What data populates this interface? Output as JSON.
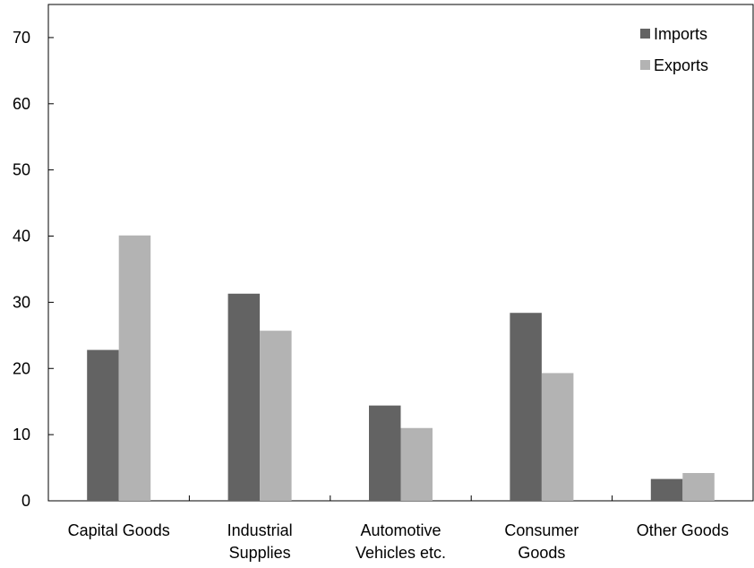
{
  "chart_data": {
    "type": "bar",
    "categories": [
      [
        "Capital Goods"
      ],
      [
        "Industrial",
        "Supplies"
      ],
      [
        "Automotive",
        "Vehicles etc."
      ],
      [
        "Consumer",
        "Goods"
      ],
      [
        "Other Goods"
      ]
    ],
    "series": [
      {
        "name": "Imports",
        "color": "#636363",
        "values": [
          22.8,
          31.3,
          14.4,
          28.4,
          3.3
        ]
      },
      {
        "name": "Exports",
        "color": "#b3b3b3",
        "values": [
          40.1,
          25.7,
          11.0,
          19.3,
          4.2
        ]
      }
    ],
    "yticks": [
      "0",
      "10",
      "20",
      "30",
      "40",
      "50",
      "60",
      "70"
    ],
    "ylim": [
      0,
      75
    ],
    "grid": false,
    "legend_position": "top-right"
  }
}
